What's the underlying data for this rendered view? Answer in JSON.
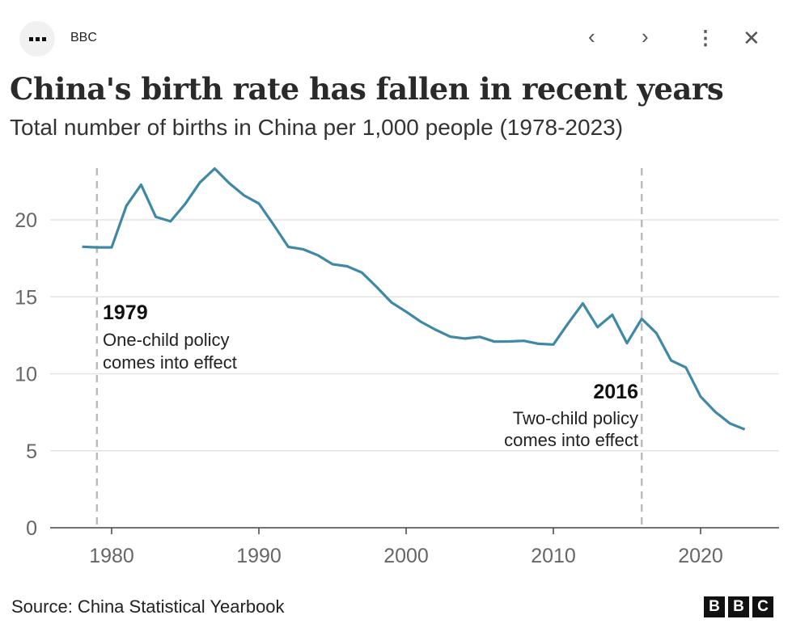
{
  "header": {
    "brand": "BBC",
    "icons": [
      "menu-icon",
      "chevron-left-icon",
      "chevron-right-icon",
      "more-vertical-icon",
      "close-icon"
    ]
  },
  "chart_data": {
    "type": "line",
    "title": "China's birth rate has fallen in recent years",
    "subtitle": "Total number of births in China per 1,000 people (1978-2023)",
    "xlabel": "",
    "ylabel": "",
    "xlim": [
      1978,
      2023
    ],
    "ylim": [
      0,
      23.5
    ],
    "x_ticks": [
      1980,
      1990,
      2000,
      2010,
      2020
    ],
    "y_ticks": [
      0,
      5,
      10,
      15,
      20
    ],
    "grid": true,
    "line_color": "#3f88a6",
    "x": [
      1978,
      1979,
      1980,
      1981,
      1982,
      1983,
      1984,
      1985,
      1986,
      1987,
      1988,
      1989,
      1990,
      1991,
      1992,
      1993,
      1994,
      1995,
      1996,
      1997,
      1998,
      1999,
      2000,
      2001,
      2002,
      2003,
      2004,
      2005,
      2006,
      2007,
      2008,
      2009,
      2010,
      2011,
      2012,
      2013,
      2014,
      2015,
      2016,
      2017,
      2018,
      2019,
      2020,
      2021,
      2022,
      2023
    ],
    "values": [
      18.25,
      18.21,
      18.21,
      20.91,
      22.28,
      20.19,
      19.9,
      21.04,
      22.43,
      23.33,
      22.37,
      21.58,
      21.06,
      19.68,
      18.24,
      18.09,
      17.7,
      17.12,
      16.98,
      16.57,
      15.64,
      14.64,
      14.03,
      13.38,
      12.86,
      12.41,
      12.29,
      12.4,
      12.09,
      12.1,
      12.14,
      11.95,
      11.9,
      13.27,
      14.57,
      13.03,
      13.83,
      11.99,
      13.57,
      12.64,
      10.86,
      10.41,
      8.52,
      7.52,
      6.77,
      6.39
    ],
    "annotations": [
      {
        "year": 1979,
        "label": "1979",
        "lines": [
          "One-child policy",
          "comes into effect"
        ],
        "align": "left"
      },
      {
        "year": 2016,
        "label": "2016",
        "lines": [
          "Two-child policy",
          "comes into effect"
        ],
        "align": "right"
      }
    ]
  },
  "footer": {
    "source": "Source: China Statistical Yearbook",
    "logo": [
      "B",
      "B",
      "C"
    ]
  }
}
